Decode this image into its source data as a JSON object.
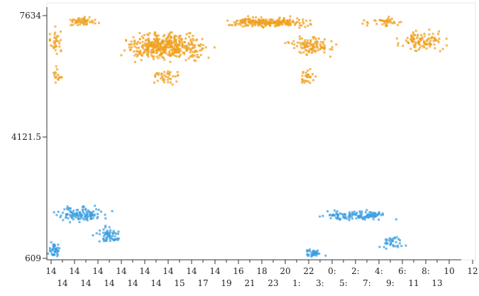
{
  "chart_data": {
    "type": "scatter",
    "title": "",
    "xlabel": "",
    "ylabel": "",
    "ylim": [
      609,
      7634
    ],
    "y_tick_labels": [
      "7634",
      "4121.5",
      "609"
    ],
    "x_tick_labels_row1": [
      "14",
      "14",
      "14",
      "14",
      "14",
      "14",
      "14",
      "14",
      "16",
      "18",
      "20",
      "22",
      "0:",
      "2:",
      "4:",
      "6:",
      "8:",
      "10",
      "12"
    ],
    "x_tick_labels_row2": [
      "14",
      "14",
      "14",
      "14",
      "14",
      "15",
      "17",
      "19",
      "21",
      "23",
      "1:",
      "3:",
      "5:",
      "7:",
      "9:",
      "11",
      "13"
    ],
    "colors": {
      "series_a": "#f0a020",
      "series_b": "#3a9ee0"
    },
    "series": [
      {
        "clusters": [
          {
            "x": [
              0.0,
              0.08
            ],
            "y": [
              6400,
              7400
            ],
            "n": 35
          },
          {
            "x": [
              0.0,
              0.08
            ],
            "y": [
              5500,
              6300
            ],
            "n": 18
          },
          {
            "x": [
              0.08,
              0.24
            ],
            "y": [
              7300,
              7634
            ],
            "n": 55
          },
          {
            "x": [
              0.28,
              0.78
            ],
            "y": [
              6200,
              7250
            ],
            "n": 440
          },
          {
            "x": [
              0.45,
              0.62
            ],
            "y": [
              5500,
              6200
            ],
            "n": 40
          },
          {
            "x": [
              0.75,
              1.22
            ],
            "y": [
              7250,
              7634
            ],
            "n": 240
          },
          {
            "x": [
              1.05,
              1.32
            ],
            "y": [
              6400,
              7100
            ],
            "n": 110
          },
          {
            "x": [
              1.1,
              1.25
            ],
            "y": [
              5500,
              6200
            ],
            "n": 30
          },
          {
            "x": [
              1.38,
              1.62
            ],
            "y": [
              7250,
              7634
            ],
            "n": 40
          },
          {
            "x": [
              1.53,
              1.82
            ],
            "y": [
              6500,
              7300
            ],
            "n": 110
          }
        ]
      },
      {
        "clusters": [
          {
            "x": [
              0.0,
              0.08
            ],
            "y": [
              609,
              1100
            ],
            "n": 40
          },
          {
            "x": [
              0.0,
              0.3
            ],
            "y": [
              1600,
              2200
            ],
            "n": 120
          },
          {
            "x": [
              0.2,
              0.35
            ],
            "y": [
              900,
              1600
            ],
            "n": 60
          },
          {
            "x": [
              1.13,
              1.25
            ],
            "y": [
              609,
              900
            ],
            "n": 40
          },
          {
            "x": [
              1.2,
              1.58
            ],
            "y": [
              1650,
              2050
            ],
            "n": 130
          },
          {
            "x": [
              1.45,
              1.62
            ],
            "y": [
              750,
              1400
            ],
            "n": 35
          }
        ]
      }
    ]
  }
}
